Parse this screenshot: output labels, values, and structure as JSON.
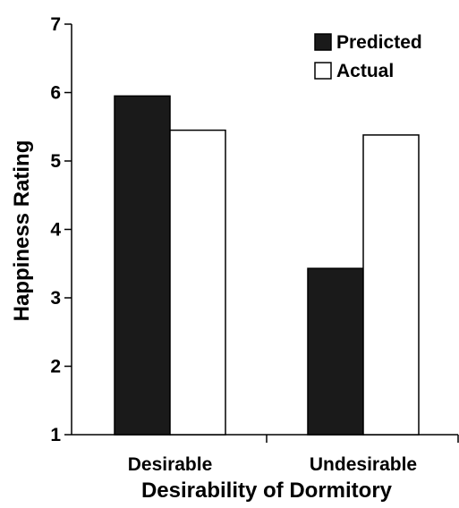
{
  "chart_data": {
    "type": "bar",
    "title": "",
    "xlabel": "Desirability of Dormitory",
    "ylabel": "Happiness Rating",
    "categories": [
      "Desirable",
      "Undesirable"
    ],
    "ylim": [
      1,
      7
    ],
    "yticks": [
      1,
      2,
      3,
      4,
      5,
      6,
      7
    ],
    "grid": false,
    "legend_position": "top-right",
    "series": [
      {
        "name": "Predicted",
        "values": [
          5.95,
          3.43
        ],
        "color": "#1a1a1a"
      },
      {
        "name": "Actual",
        "values": [
          5.45,
          5.38
        ],
        "color": "#ffffff"
      }
    ]
  }
}
